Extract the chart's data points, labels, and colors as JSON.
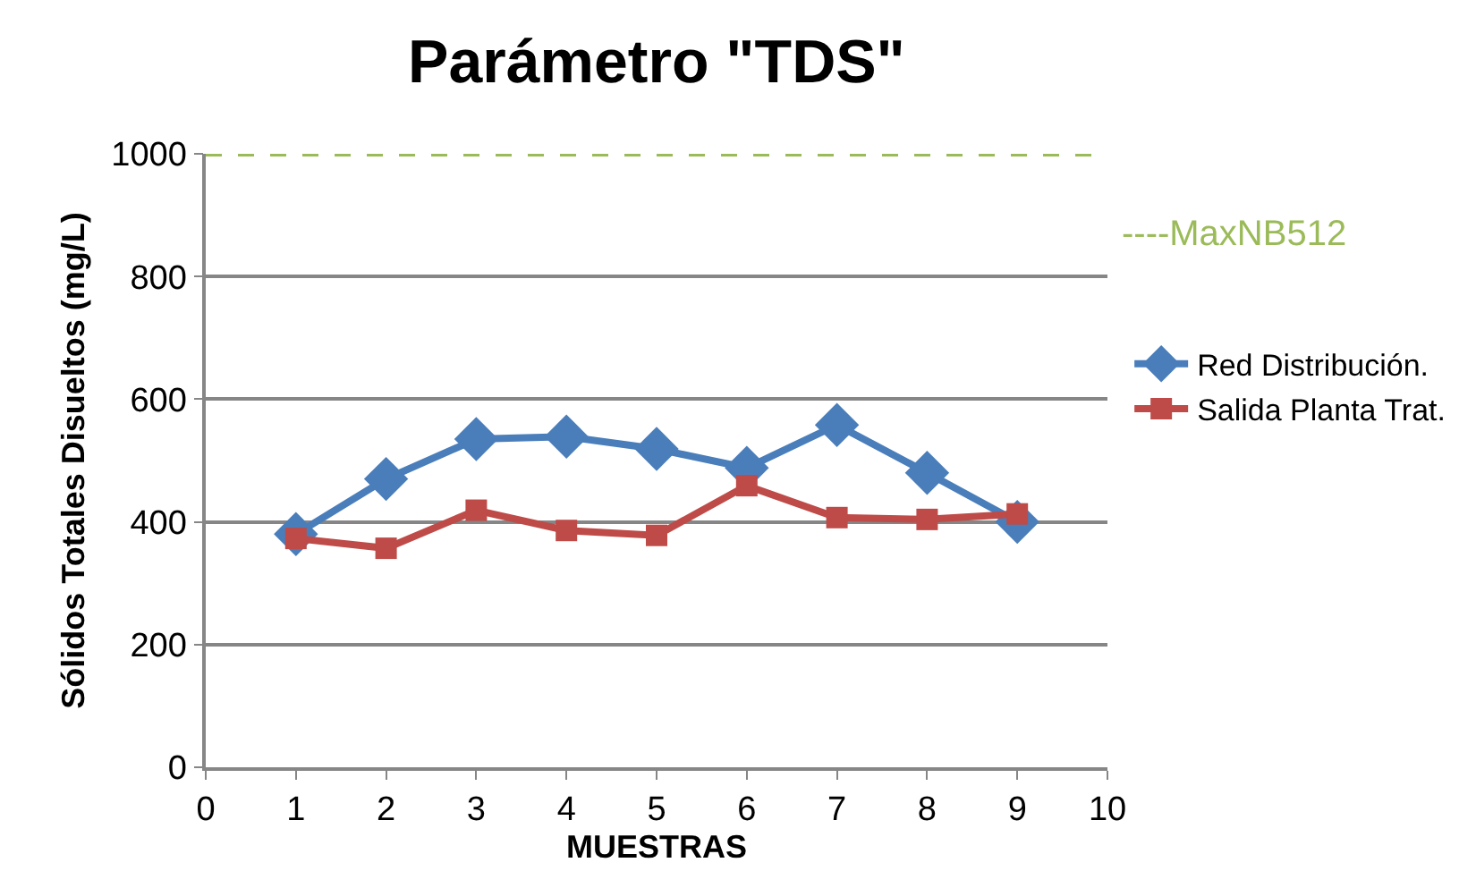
{
  "chart_data": {
    "type": "line",
    "title": "Parámetro \"TDS\"",
    "xlabel": "MUESTRAS",
    "ylabel": "Sólidos Totales Disueltos (mg/L)",
    "x": [
      1,
      2,
      3,
      4,
      5,
      6,
      7,
      8,
      9
    ],
    "series": [
      {
        "name": "Red Distribución.",
        "color": "#4a7ebb",
        "marker": "diamond",
        "values": [
          380,
          470,
          535,
          539,
          519,
          488,
          558,
          480,
          400
        ]
      },
      {
        "name": "Salida Planta Trat.",
        "color": "#be4b48",
        "marker": "square",
        "values": [
          373,
          357,
          419,
          386,
          378,
          459,
          407,
          404,
          413
        ]
      }
    ],
    "xlim": [
      0,
      10
    ],
    "xticks": [
      0,
      1,
      2,
      3,
      4,
      5,
      6,
      7,
      8,
      9,
      10
    ],
    "ylim": [
      0,
      1000
    ],
    "yticks": [
      0,
      200,
      400,
      600,
      800,
      1000
    ],
    "grid": "y",
    "legend": "right",
    "line_style": "solid",
    "ref_lines": [
      {
        "axis": "y",
        "value": 1000,
        "label": "----MaxNB512",
        "color": "#9bbb59",
        "line_style": "dashed"
      }
    ]
  }
}
